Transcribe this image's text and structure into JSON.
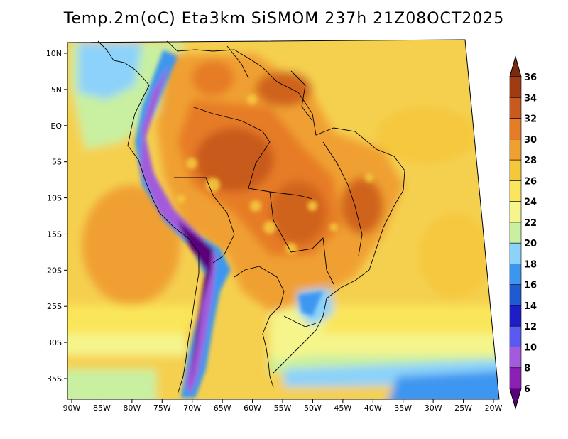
{
  "title": "Temp.2m(oC) Eta3km SiSMOM 237h 21Z08OCT2025",
  "map": {
    "variable": "Temp.2m(oC)",
    "model": "Eta3km",
    "run": "SiSMOM",
    "forecast_hour": "237h",
    "valid_time": "21Z08OCT2025",
    "lon_labels": [
      "90W",
      "85W",
      "80W",
      "75W",
      "70W",
      "65W",
      "60W",
      "55W",
      "50W",
      "45W",
      "40W",
      "35W",
      "30W",
      "25W",
      "20W"
    ],
    "lat_labels": [
      "10N",
      "5N",
      "EQ",
      "5S",
      "10S",
      "15S",
      "20S",
      "25S",
      "30S",
      "35S"
    ],
    "lon_values": [
      -90,
      -85,
      -80,
      -75,
      -70,
      -65,
      -60,
      -55,
      -50,
      -45,
      -40,
      -35,
      -30,
      -25,
      -20
    ],
    "lat_values": [
      10,
      5,
      0,
      -5,
      -10,
      -15,
      -20,
      -25,
      -30,
      -35
    ]
  },
  "colorbar": {
    "labels": [
      "6",
      "8",
      "10",
      "12",
      "14",
      "16",
      "18",
      "20",
      "22",
      "24",
      "26",
      "28",
      "30",
      "32",
      "34",
      "36"
    ],
    "values": [
      6,
      8,
      10,
      12,
      14,
      16,
      18,
      20,
      22,
      24,
      26,
      28,
      30,
      32,
      34,
      36
    ],
    "colors": [
      "#5a007a",
      "#8c1fb4",
      "#a35adc",
      "#5a5af0",
      "#1e1ec8",
      "#1e5ad2",
      "#3c96f0",
      "#8cd2fa",
      "#c8f0a0",
      "#f5f58c",
      "#fae65a",
      "#f5c83c",
      "#f0a030",
      "#e67b28",
      "#c85a1e",
      "#a03c14",
      "#7a2a0e"
    ]
  }
}
